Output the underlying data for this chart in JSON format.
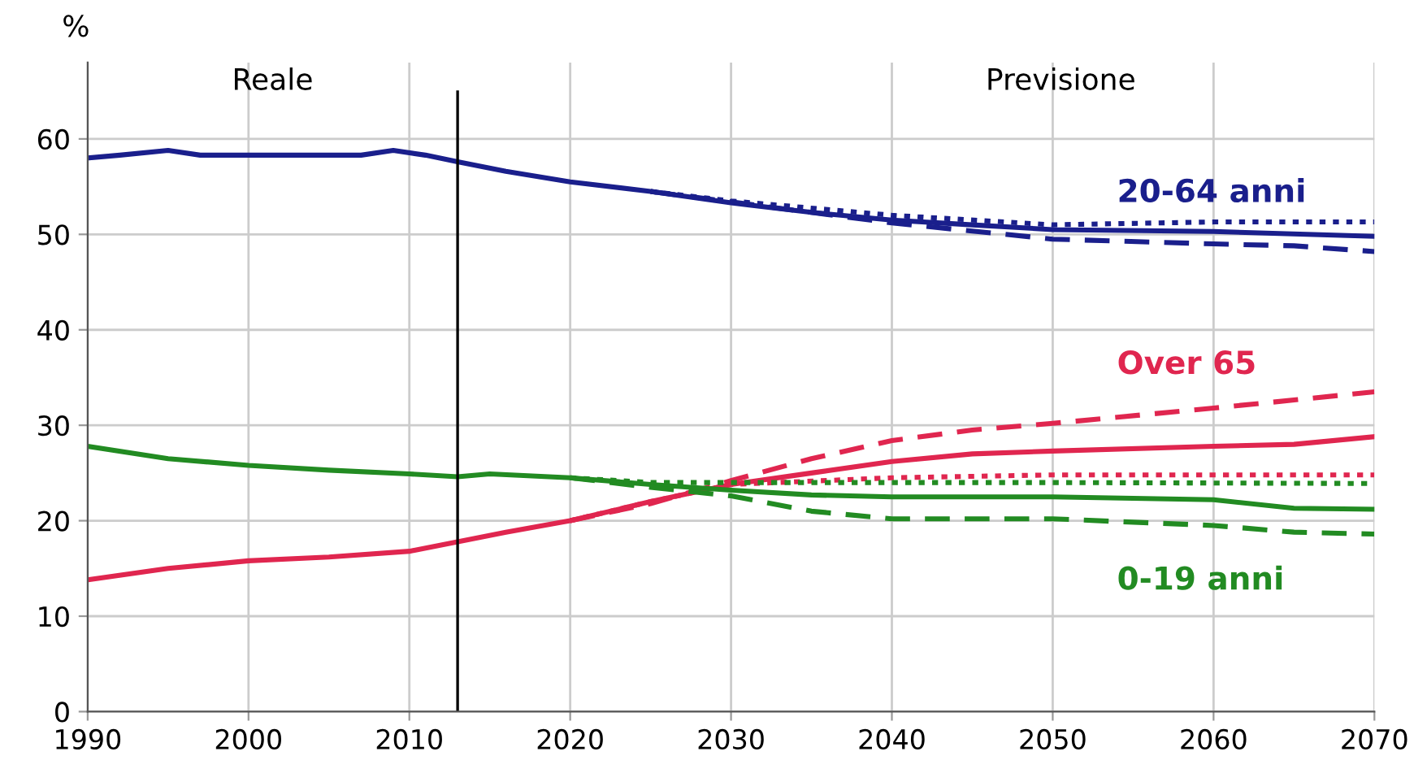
{
  "chart_data": {
    "type": "line",
    "ylabel": "%",
    "xlim": [
      1990,
      2070
    ],
    "xticks": [
      1990,
      2000,
      2010,
      2020,
      2030,
      2040,
      2050,
      2060,
      2070
    ],
    "ylim": [
      0,
      68
    ],
    "yticks": [
      0,
      10,
      20,
      30,
      40,
      50,
      60
    ],
    "grid": true,
    "ref_lines": [
      {
        "axis": "x",
        "value": 2013,
        "color": "#000000"
      }
    ],
    "annotations": [
      "Reale",
      "Previsione"
    ],
    "series": [
      {
        "name": "20-64 anni",
        "color": "#1a1f8c",
        "line_style": "solid",
        "x": [
          1990,
          1992,
          1995,
          1997,
          2007,
          2009,
          2011,
          2013,
          2016,
          2020,
          2025,
          2030,
          2035,
          2040,
          2045,
          2050,
          2060,
          2070
        ],
        "values": [
          58,
          58.3,
          58.8,
          58.3,
          58.3,
          58.8,
          58.3,
          57.6,
          56.6,
          55.5,
          54.5,
          53.3,
          52.3,
          51.5,
          51,
          50.5,
          50.3,
          49.8
        ]
      },
      {
        "color": "#1a1f8c",
        "line_style": "dashed",
        "x": [
          2025,
          2030,
          2040,
          2050,
          2060,
          2065,
          2070
        ],
        "values": [
          54.5,
          53.4,
          51.2,
          49.5,
          49,
          48.8,
          48.2
        ]
      },
      {
        "color": "#1a1f8c",
        "line_style": "dotted",
        "x": [
          2025,
          2030,
          2040,
          2050,
          2060,
          2070
        ],
        "values": [
          54.5,
          53.5,
          52,
          51,
          51.3,
          51.3
        ]
      },
      {
        "name": "Over 65",
        "color": "#e0264f",
        "line_style": "solid",
        "x": [
          1990,
          1995,
          2000,
          2005,
          2010,
          2013,
          2016,
          2020,
          2025,
          2030,
          2035,
          2040,
          2045,
          2050,
          2060,
          2065,
          2070
        ],
        "values": [
          13.8,
          15,
          15.8,
          16.2,
          16.8,
          17.8,
          18.8,
          20,
          22,
          23.8,
          25,
          26.2,
          27,
          27.3,
          27.8,
          28,
          28.8
        ]
      },
      {
        "color": "#e0264f",
        "line_style": "dashed",
        "x": [
          2020,
          2025,
          2030,
          2035,
          2040,
          2045,
          2050,
          2060,
          2070
        ],
        "values": [
          20,
          21.8,
          24.2,
          26.5,
          28.4,
          29.5,
          30.2,
          31.8,
          33.5
        ]
      },
      {
        "color": "#e0264f",
        "line_style": "dotted",
        "x": [
          2020,
          2025,
          2030,
          2040,
          2050,
          2060,
          2070
        ],
        "values": [
          20,
          22,
          23.8,
          24.5,
          24.8,
          24.8,
          24.8
        ]
      },
      {
        "name": "0-19 anni",
        "color": "#228b22",
        "line_style": "solid",
        "x": [
          1990,
          1995,
          2000,
          2005,
          2010,
          2013,
          2015,
          2020,
          2025,
          2030,
          2035,
          2040,
          2050,
          2060,
          2065,
          2070
        ],
        "values": [
          27.8,
          26.5,
          25.8,
          25.3,
          24.9,
          24.6,
          24.9,
          24.5,
          23.8,
          23.2,
          22.7,
          22.5,
          22.5,
          22.2,
          21.3,
          21.2
        ]
      },
      {
        "color": "#228b22",
        "line_style": "dashed",
        "x": [
          2020,
          2025,
          2030,
          2035,
          2040,
          2050,
          2060,
          2065,
          2070
        ],
        "values": [
          24.5,
          23.5,
          22.6,
          21,
          20.2,
          20.2,
          19.5,
          18.8,
          18.6
        ]
      },
      {
        "color": "#228b22",
        "line_style": "dotted",
        "x": [
          2020,
          2025,
          2030,
          2040,
          2050,
          2070
        ],
        "values": [
          24.5,
          24,
          24,
          24,
          24,
          23.9
        ]
      }
    ]
  }
}
